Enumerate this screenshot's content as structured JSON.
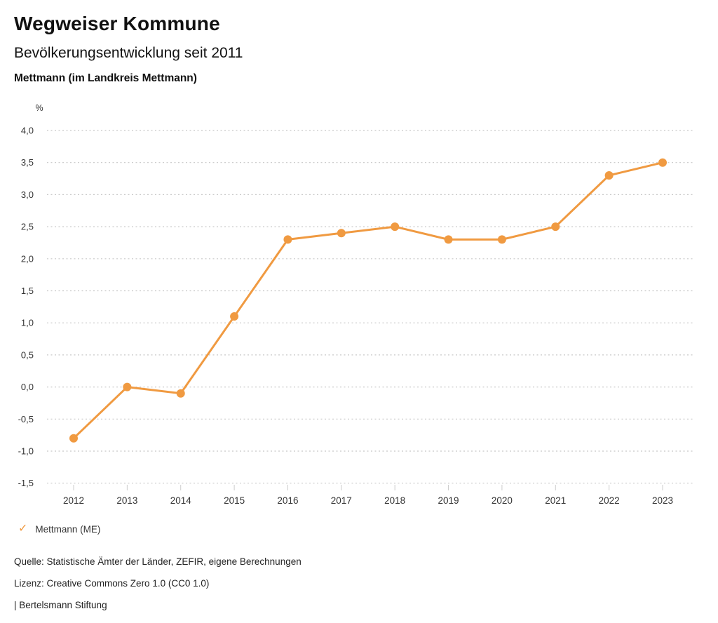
{
  "header": {
    "title": "Wegweiser Kommune",
    "subtitle": "Bevölkerungsentwicklung seit 2011",
    "region": "Mettmann (im Landkreis Mettmann)"
  },
  "chart_data": {
    "type": "line",
    "title": "Bevölkerungsentwicklung seit 2011",
    "region": "Mettmann (im Landkreis Mettmann)",
    "unit_label": "%",
    "categories": [
      "2012",
      "2013",
      "2014",
      "2015",
      "2016",
      "2017",
      "2018",
      "2019",
      "2020",
      "2021",
      "2022",
      "2023"
    ],
    "series": [
      {
        "name": "Mettmann (ME)",
        "color": "#F09A41",
        "values": [
          -0.8,
          0.0,
          -0.1,
          1.1,
          2.3,
          2.4,
          2.5,
          2.3,
          2.3,
          2.5,
          3.3,
          3.5
        ]
      }
    ],
    "ylim": [
      -1.5,
      4.0
    ],
    "ytick_step": 0.5,
    "ytick_labels": [
      "4,0",
      "3,5",
      "3,0",
      "2,5",
      "2,0",
      "1,5",
      "1,0",
      "0,5",
      "0,0",
      "-0,5",
      "-1,0",
      "-1,5"
    ],
    "grid": "horizontal-dotted",
    "legend_position": "bottom-left"
  },
  "legend": {
    "check_icon": "✓",
    "series_label": "Mettmann (ME)"
  },
  "footer": {
    "source": "Quelle: Statistische Ämter der Länder, ZEFIR, eigene Berechnungen",
    "license": "Lizenz: Creative Commons Zero 1.0 (CC0 1.0)",
    "attribution": "| Bertelsmann Stiftung"
  },
  "colors": {
    "accent": "#F09A41",
    "grid": "#C8C8C8",
    "tick": "#CCCCCC",
    "axis_text": "#333333",
    "heading_text": "#111111"
  }
}
